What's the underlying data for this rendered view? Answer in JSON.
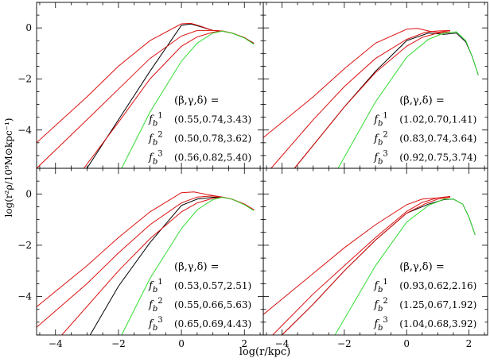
{
  "figure": {
    "xlabel": "log(r/kpc)",
    "ylabel": "log(r²ρ/10⁹M⊙kpc⁻¹)",
    "header": "(β,γ,δ) =",
    "row_labels": [
      "f_b^1",
      "f_b^2",
      "f_b^3"
    ],
    "colors": {
      "black": "#000000",
      "red": "#dd1111",
      "green": "#33dd33"
    }
  },
  "chart_data": [
    {
      "type": "line",
      "panel": "top-left",
      "xlim": [
        -4.6,
        2.6
      ],
      "ylim": [
        -5.5,
        1.0
      ],
      "xticks": [],
      "yticks": [
        -4,
        -2,
        0
      ],
      "params": [
        "(0.55,0.74,3.43)",
        "(0.50,0.78,3.62)",
        "(0.56,0.82,5.40)"
      ],
      "series": [
        {
          "color": "black",
          "x": [
            -3.0,
            -2.0,
            -1.0,
            0.0,
            0.3,
            0.6,
            1.0,
            1.3,
            1.6,
            2.0,
            2.3
          ],
          "y": [
            -5.5,
            -3.6,
            -1.7,
            0.1,
            0.15,
            0.05,
            -0.1,
            -0.13,
            -0.2,
            -0.38,
            -0.6
          ]
        },
        {
          "color": "red",
          "x": [
            -4.6,
            -3.0,
            -2.0,
            -1.0,
            0.0,
            0.3,
            0.6,
            1.0,
            1.3,
            1.6,
            2.0,
            2.3
          ],
          "y": [
            -4.5,
            -2.7,
            -1.5,
            -0.5,
            0.16,
            0.18,
            0.07,
            -0.1,
            -0.13,
            -0.2,
            -0.38,
            -0.62
          ]
        },
        {
          "color": "red",
          "x": [
            -4.6,
            -3.0,
            -2.0,
            -1.0,
            0.0,
            0.5,
            1.0,
            1.3,
            1.6,
            2.0,
            2.3
          ],
          "y": [
            -5.5,
            -3.6,
            -2.4,
            -1.2,
            -0.32,
            -0.1,
            -0.1,
            -0.12,
            -0.2,
            -0.38,
            -0.62
          ]
        },
        {
          "color": "red",
          "x": [
            -3.1,
            -2.0,
            -1.0,
            0.0,
            0.5,
            1.0,
            1.3,
            1.6,
            2.0,
            2.3
          ],
          "y": [
            -5.5,
            -3.7,
            -2.0,
            -0.72,
            -0.35,
            -0.17,
            -0.13,
            -0.2,
            -0.38,
            -0.62
          ]
        },
        {
          "color": "green",
          "x": [
            -1.9,
            -1.0,
            0.0,
            0.5,
            1.0,
            1.3,
            1.6,
            2.0,
            2.3
          ],
          "y": [
            -5.5,
            -3.3,
            -1.3,
            -0.6,
            -0.2,
            -0.13,
            -0.2,
            -0.4,
            -0.64
          ]
        }
      ]
    },
    {
      "type": "line",
      "panel": "top-right",
      "xlim": [
        -4.6,
        2.6
      ],
      "ylim": [
        -5.5,
        1.0
      ],
      "xticks": [],
      "yticks": [],
      "params": [
        "(1.02,0.70,1.41)",
        "(0.83,0.74,3.64)",
        "(0.92,0.75,3.74)"
      ],
      "series": [
        {
          "color": "black",
          "x": [
            -3.6,
            -2.0,
            -1.0,
            0.0,
            0.7,
            1.2,
            1.6,
            1.9,
            2.1,
            2.3
          ],
          "y": [
            -5.5,
            -3.1,
            -1.7,
            -0.5,
            -0.2,
            -0.25,
            -0.2,
            -0.55,
            -1.1,
            -1.85
          ]
        },
        {
          "color": "red",
          "x": [
            -4.6,
            -3.0,
            -2.0,
            -1.0,
            0.0,
            0.35,
            0.7,
            1.0,
            1.4
          ],
          "y": [
            -4.3,
            -2.7,
            -1.6,
            -0.6,
            -0.05,
            -0.02,
            -0.12,
            -0.18,
            -0.1
          ]
        },
        {
          "color": "red",
          "x": [
            -4.35,
            -3.0,
            -2.0,
            -1.0,
            0.0,
            0.6,
            1.0,
            1.4
          ],
          "y": [
            -5.5,
            -3.6,
            -2.3,
            -1.2,
            -0.45,
            -0.17,
            -0.12,
            -0.1
          ]
        },
        {
          "color": "red",
          "x": [
            -3.6,
            -2.0,
            -1.0,
            0.0,
            0.5,
            1.0,
            1.4
          ],
          "y": [
            -5.5,
            -3.1,
            -1.75,
            -0.72,
            -0.37,
            -0.2,
            -0.15
          ]
        },
        {
          "color": "green",
          "x": [
            -2.2,
            -1.0,
            0.0,
            0.7,
            1.2,
            1.6,
            1.9,
            2.1,
            2.3
          ],
          "y": [
            -5.5,
            -2.9,
            -1.15,
            -0.45,
            -0.2,
            -0.15,
            -0.5,
            -1.1,
            -1.85
          ]
        }
      ]
    },
    {
      "type": "line",
      "panel": "bottom-left",
      "xlim": [
        -4.6,
        2.6
      ],
      "ylim": [
        -5.5,
        1.0
      ],
      "xticks": [
        -4,
        -2,
        0,
        2
      ],
      "yticks": [
        -4,
        -2,
        0
      ],
      "params": [
        "(0.53,0.57,2.51)",
        "(0.55,0.66,5.63)",
        "(0.65,0.69,4.43)"
      ],
      "series": [
        {
          "color": "black",
          "x": [
            -2.9,
            -2.0,
            -1.0,
            0.0,
            0.5,
            1.0,
            1.3,
            1.6,
            2.0,
            2.3
          ],
          "y": [
            -5.5,
            -3.6,
            -1.9,
            -0.45,
            -0.2,
            -0.13,
            -0.12,
            -0.2,
            -0.4,
            -0.62
          ]
        },
        {
          "color": "red",
          "x": [
            -4.6,
            -3.0,
            -2.0,
            -1.0,
            0.0,
            0.4,
            0.8,
            1.3,
            1.6,
            2.0,
            2.3
          ],
          "y": [
            -4.4,
            -2.8,
            -1.7,
            -0.7,
            0.05,
            0.08,
            -0.02,
            -0.12,
            -0.2,
            -0.4,
            -0.62
          ]
        },
        {
          "color": "red",
          "x": [
            -4.6,
            -3.0,
            -2.0,
            -1.0,
            0.0,
            0.5,
            1.0,
            1.3,
            1.6,
            2.0,
            2.3
          ],
          "y": [
            -5.2,
            -3.5,
            -2.3,
            -1.2,
            -0.35,
            -0.12,
            -0.08,
            -0.12,
            -0.2,
            -0.4,
            -0.62
          ]
        },
        {
          "color": "red",
          "x": [
            -3.8,
            -2.0,
            -1.0,
            0.0,
            0.5,
            1.0,
            1.3,
            1.6,
            2.0,
            2.3
          ],
          "y": [
            -5.5,
            -3.0,
            -1.75,
            -0.7,
            -0.35,
            -0.17,
            -0.13,
            -0.2,
            -0.4,
            -0.62
          ]
        },
        {
          "color": "green",
          "x": [
            -1.9,
            -1.0,
            0.0,
            0.5,
            1.0,
            1.3,
            1.6,
            2.0,
            2.3
          ],
          "y": [
            -5.5,
            -3.3,
            -1.35,
            -0.62,
            -0.22,
            -0.13,
            -0.2,
            -0.42,
            -0.65
          ]
        }
      ]
    },
    {
      "type": "line",
      "panel": "bottom-right",
      "xlim": [
        -4.6,
        2.6
      ],
      "ylim": [
        -5.5,
        1.0
      ],
      "xticks": [
        -4,
        -2,
        0,
        2
      ],
      "yticks": [],
      "params": [
        "(0.93,0.62,2.16)",
        "(1.25,0.67,1.92)",
        "(1.04,0.68,3.92)"
      ],
      "series": [
        {
          "color": "black",
          "x": [
            -4.0,
            -3.0,
            -2.0,
            -1.0,
            0.0,
            0.7,
            1.2,
            1.5,
            1.8,
            2.0,
            2.2
          ],
          "y": [
            -5.5,
            -4.3,
            -3.0,
            -1.8,
            -0.75,
            -0.4,
            -0.22,
            -0.2,
            -0.4,
            -0.9,
            -1.6
          ]
        },
        {
          "color": "red",
          "x": [
            -4.6,
            -3.0,
            -2.0,
            -1.0,
            0.0,
            0.5,
            1.0,
            1.4
          ],
          "y": [
            -4.7,
            -3.1,
            -2.1,
            -1.2,
            -0.42,
            -0.2,
            -0.15,
            -0.1
          ]
        },
        {
          "color": "red",
          "x": [
            -4.3,
            -3.0,
            -2.0,
            -1.0,
            0.0,
            0.5,
            1.0,
            1.4
          ],
          "y": [
            -5.5,
            -3.9,
            -2.8,
            -1.7,
            -0.68,
            -0.33,
            -0.15,
            -0.1
          ]
        },
        {
          "color": "red",
          "x": [
            -4.0,
            -3.0,
            -2.0,
            -1.0,
            0.0,
            0.6,
            1.0,
            1.4
          ],
          "y": [
            -5.5,
            -4.3,
            -3.0,
            -1.8,
            -0.75,
            -0.38,
            -0.2,
            -0.13
          ]
        },
        {
          "color": "green",
          "x": [
            -2.3,
            -1.0,
            0.0,
            0.7,
            1.2,
            1.5,
            1.8,
            2.0,
            2.2
          ],
          "y": [
            -5.5,
            -2.8,
            -1.1,
            -0.45,
            -0.2,
            -0.2,
            -0.4,
            -0.9,
            -1.6
          ]
        }
      ]
    }
  ]
}
